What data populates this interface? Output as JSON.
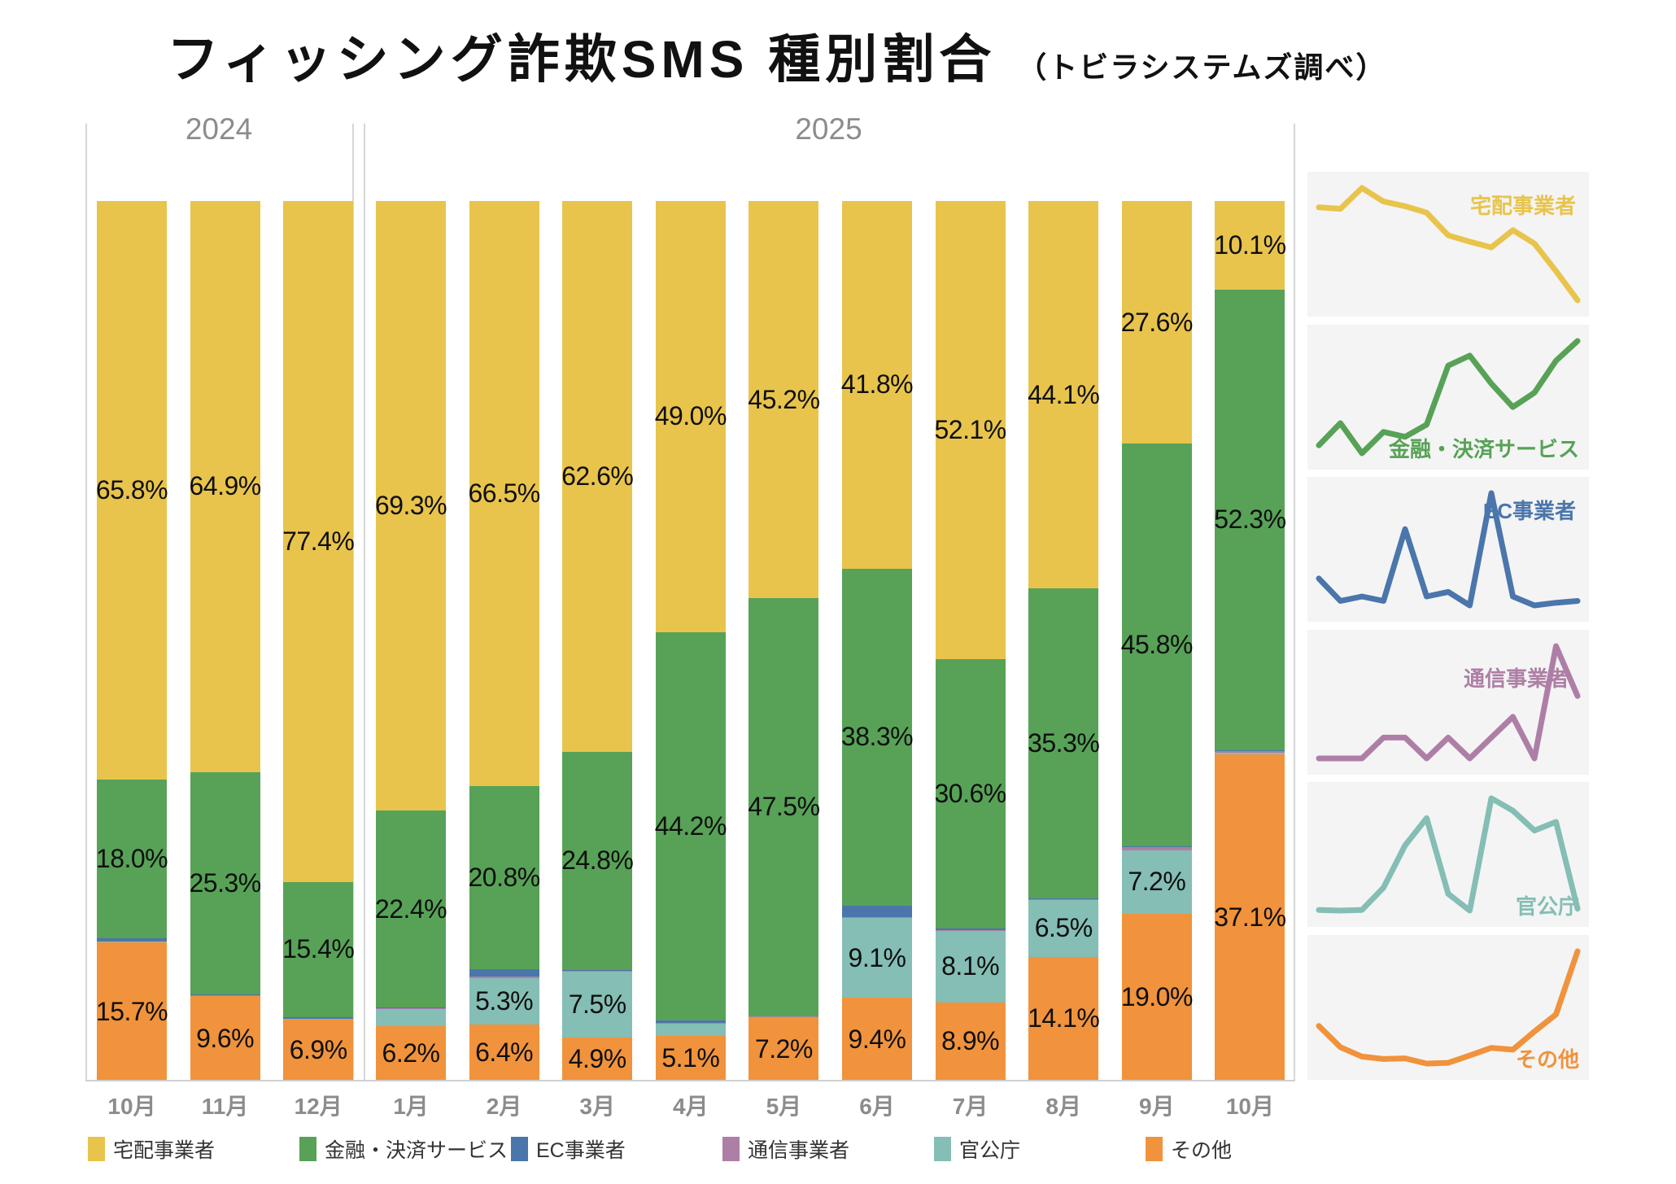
{
  "title": "フィッシング詐欺SMS 種別割合",
  "subtitle": "（トビラシステムズ調べ）",
  "chart_data": {
    "type": "bar",
    "stacked": true,
    "unit": "%",
    "ylim": [
      0,
      100
    ],
    "grid": false,
    "categories": [
      "10月",
      "11月",
      "12月",
      "1月",
      "2月",
      "3月",
      "4月",
      "5月",
      "6月",
      "7月",
      "8月",
      "9月",
      "10月"
    ],
    "year_groups": [
      {
        "label": "2024",
        "span": 3
      },
      {
        "label": "2025",
        "span": 10
      }
    ],
    "unlabeled_segments_estimated": true,
    "series": [
      {
        "name": "宅配事業者",
        "color": "#E8C44C",
        "spark_label_pos": "tr",
        "values": [
          65.8,
          64.9,
          77.4,
          69.3,
          66.5,
          62.6,
          49.0,
          45.2,
          41.8,
          52.1,
          44.1,
          27.6,
          10.1
        ],
        "labels": [
          "65.8%",
          "64.9%",
          "77.4%",
          "69.3%",
          "66.5%",
          "62.6%",
          "49.0%",
          "45.2%",
          "41.8%",
          "52.1%",
          "44.1%",
          "27.6%",
          "10.1%"
        ]
      },
      {
        "name": "金融・決済サービス",
        "color": "#57A257",
        "spark_label_pos": "br",
        "values": [
          18.0,
          25.3,
          15.4,
          22.4,
          20.8,
          24.8,
          44.2,
          47.5,
          38.3,
          30.6,
          35.3,
          45.8,
          52.3
        ],
        "labels": [
          "18.0%",
          "25.3%",
          "15.4%",
          "22.4%",
          "20.8%",
          "24.8%",
          "44.2%",
          "47.5%",
          "38.3%",
          "30.6%",
          "35.3%",
          "45.8%",
          "52.3%"
        ]
      },
      {
        "name": "EC事業者",
        "color": "#4A76AB",
        "spark_label_pos": "tr",
        "values": [
          0.35,
          0.1,
          0.15,
          0.1,
          0.9,
          0.15,
          0.2,
          0.05,
          1.3,
          0.15,
          0.05,
          0.08,
          0.1
        ],
        "labels": [
          "",
          "",
          "",
          "",
          "",
          "",
          "",
          "",
          "",
          "",
          "",
          "",
          ""
        ]
      },
      {
        "name": "通信事業者",
        "color": "#AE7FA6",
        "spark_label_pos": "mr",
        "values": [
          0.05,
          0.05,
          0.05,
          0.1,
          0.1,
          0.05,
          0.1,
          0.05,
          0.1,
          0.15,
          0.05,
          0.32,
          0.2
        ],
        "labels": [
          "",
          "",
          "",
          "",
          "",
          "",
          "",
          "",
          "",
          "",
          "",
          "",
          ""
        ]
      },
      {
        "name": "官公庁",
        "color": "#84BEB5",
        "spark_label_pos": "br",
        "values": [
          0.1,
          0.05,
          0.1,
          1.9,
          5.3,
          7.5,
          1.4,
          0.05,
          9.1,
          8.1,
          6.5,
          7.2,
          0.2
        ],
        "labels": [
          "",
          "",
          "",
          "",
          "5.3%",
          "7.5%",
          "",
          "",
          "9.1%",
          "8.1%",
          "6.5%",
          "7.2%",
          ""
        ]
      },
      {
        "name": "その他",
        "color": "#F0933C",
        "spark_label_pos": "br",
        "values": [
          15.7,
          9.6,
          6.9,
          6.2,
          6.4,
          4.9,
          5.1,
          7.2,
          9.4,
          8.9,
          14.1,
          19.0,
          37.1
        ],
        "labels": [
          "15.7%",
          "9.6%",
          "6.9%",
          "6.2%",
          "6.4%",
          "4.9%",
          "5.1%",
          "7.2%",
          "9.4%",
          "8.9%",
          "14.1%",
          "19.0%",
          "37.1%"
        ]
      }
    ],
    "legend_position": "bottom",
    "sparklines_position": "right"
  },
  "legend": {
    "items": [
      {
        "label": "宅配事業者",
        "color": "#E8C44C"
      },
      {
        "label": "金融・決済サービス",
        "color": "#57A257"
      },
      {
        "label": "EC事業者",
        "color": "#4A76AB"
      },
      {
        "label": "通信事業者",
        "color": "#AE7FA6"
      },
      {
        "label": "官公庁",
        "color": "#84BEB5"
      },
      {
        "label": "その他",
        "color": "#F0933C"
      }
    ]
  }
}
